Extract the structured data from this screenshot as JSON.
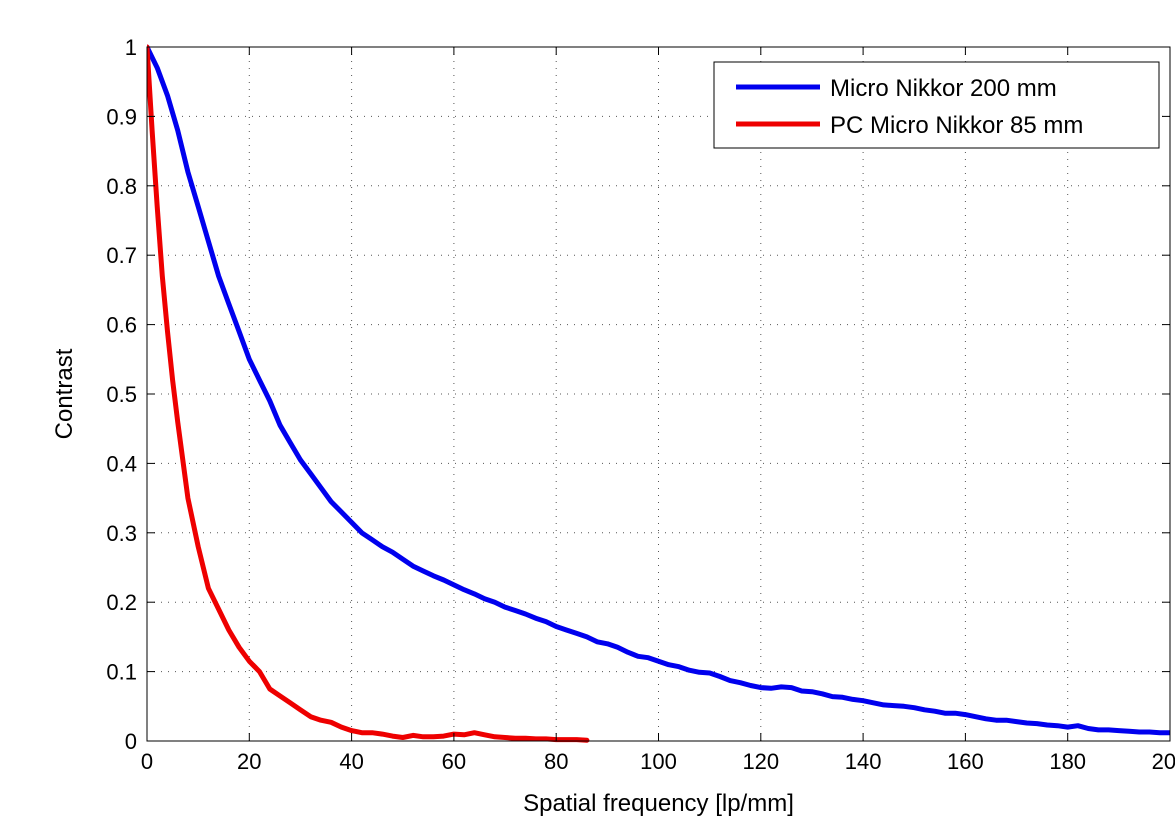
{
  "chart_data": {
    "type": "line",
    "xlabel": "Spatial frequency [lp/mm]",
    "ylabel": "Contrast",
    "xlim": [
      0,
      200
    ],
    "ylim": [
      0,
      1
    ],
    "x_ticks": [
      0,
      20,
      40,
      60,
      80,
      100,
      120,
      140,
      160,
      180,
      200
    ],
    "x_tick_labels": [
      "0",
      "20",
      "40",
      "60",
      "80",
      "100",
      "120",
      "140",
      "160",
      "180",
      "200"
    ],
    "y_ticks": [
      0,
      0.1,
      0.2,
      0.3,
      0.4,
      0.5,
      0.6,
      0.7,
      0.8,
      0.9,
      1
    ],
    "y_tick_labels": [
      "0",
      "0.1",
      "0.2",
      "0.3",
      "0.4",
      "0.5",
      "0.6",
      "0.7",
      "0.8",
      "0.9",
      "1"
    ],
    "grid": true,
    "legend_position": "top-right",
    "series": [
      {
        "name": "Micro Nikkor 200 mm",
        "color": "#0000ee",
        "x": [
          0,
          2,
          4,
          6,
          8,
          10,
          12,
          14,
          16,
          18,
          20,
          22,
          24,
          26,
          28,
          30,
          32,
          34,
          36,
          38,
          40,
          42,
          44,
          46,
          48,
          50,
          52,
          54,
          56,
          58,
          60,
          62,
          64,
          66,
          68,
          70,
          72,
          74,
          76,
          78,
          80,
          82,
          84,
          86,
          88,
          90,
          92,
          94,
          96,
          98,
          100,
          102,
          104,
          106,
          108,
          110,
          112,
          114,
          116,
          118,
          120,
          122,
          124,
          126,
          128,
          130,
          132,
          134,
          136,
          138,
          140,
          142,
          144,
          146,
          148,
          150,
          152,
          154,
          156,
          158,
          160,
          162,
          164,
          166,
          168,
          170,
          172,
          174,
          176,
          178,
          180,
          182,
          184,
          186,
          188,
          190,
          192,
          194,
          196,
          198,
          200
        ],
        "y": [
          1.0,
          0.97,
          0.93,
          0.88,
          0.82,
          0.77,
          0.72,
          0.67,
          0.63,
          0.59,
          0.55,
          0.52,
          0.49,
          0.455,
          0.43,
          0.405,
          0.385,
          0.365,
          0.345,
          0.33,
          0.315,
          0.3,
          0.29,
          0.28,
          0.272,
          0.262,
          0.252,
          0.245,
          0.238,
          0.232,
          0.225,
          0.218,
          0.212,
          0.205,
          0.2,
          0.193,
          0.188,
          0.183,
          0.177,
          0.172,
          0.165,
          0.16,
          0.155,
          0.15,
          0.143,
          0.14,
          0.135,
          0.128,
          0.122,
          0.12,
          0.115,
          0.11,
          0.107,
          0.102,
          0.099,
          0.098,
          0.093,
          0.087,
          0.084,
          0.08,
          0.077,
          0.076,
          0.078,
          0.077,
          0.072,
          0.071,
          0.068,
          0.064,
          0.063,
          0.06,
          0.058,
          0.055,
          0.052,
          0.051,
          0.05,
          0.048,
          0.045,
          0.043,
          0.04,
          0.04,
          0.038,
          0.035,
          0.032,
          0.03,
          0.03,
          0.028,
          0.026,
          0.025,
          0.023,
          0.022,
          0.02,
          0.022,
          0.018,
          0.016,
          0.016,
          0.015,
          0.014,
          0.013,
          0.013,
          0.012,
          0.012
        ]
      },
      {
        "name": "PC Micro Nikkor 85 mm",
        "color": "#ee0000",
        "x": [
          0,
          1,
          2,
          3,
          4,
          5,
          6,
          8,
          10,
          12,
          14,
          16,
          18,
          20,
          22,
          24,
          26,
          28,
          30,
          32,
          34,
          36,
          38,
          40,
          42,
          44,
          46,
          48,
          50,
          52,
          54,
          56,
          58,
          60,
          62,
          64,
          66,
          68,
          70,
          72,
          74,
          76,
          78,
          80,
          82,
          84,
          86
        ],
        "y": [
          1.0,
          0.88,
          0.77,
          0.67,
          0.59,
          0.52,
          0.46,
          0.35,
          0.28,
          0.22,
          0.19,
          0.16,
          0.135,
          0.115,
          0.1,
          0.075,
          0.065,
          0.055,
          0.045,
          0.035,
          0.03,
          0.027,
          0.02,
          0.015,
          0.012,
          0.012,
          0.01,
          0.007,
          0.005,
          0.008,
          0.006,
          0.006,
          0.007,
          0.01,
          0.009,
          0.012,
          0.009,
          0.006,
          0.005,
          0.004,
          0.004,
          0.003,
          0.003,
          0.002,
          0.002,
          0.002,
          0.001
        ]
      }
    ]
  }
}
